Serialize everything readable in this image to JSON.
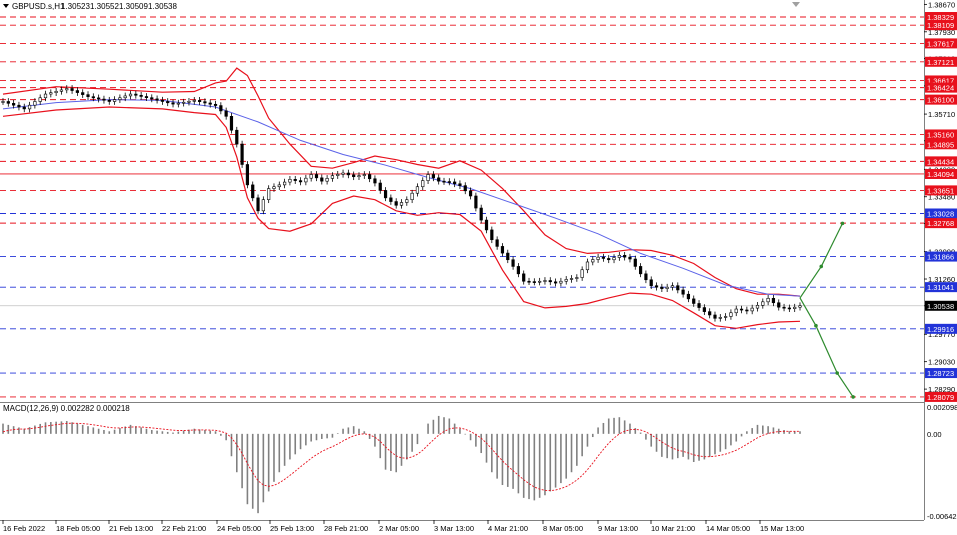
{
  "colors": {
    "background": "#ffffff",
    "plot_background": "#ffffff",
    "candle": "#000000",
    "bollinger": "#e8101c",
    "moving_average": "#5b62e8",
    "red_level": "#e8101c",
    "blue_level": "#2233d8",
    "arrow": "#2e8b2e",
    "macd_hist": "#808080",
    "macd_signal": "#e8101c",
    "current_price_line": "#c0c0c0"
  },
  "chart_data": {
    "type": "candlestick",
    "title": "GBPUSD.s,H1",
    "ohlc_readout": [
      "1.30523",
      "1.30552",
      "1.30509",
      "1.30538"
    ],
    "ylim": [
      1.2805,
      1.3868
    ],
    "price_ticks": [
      "1.38670",
      "1.37930",
      "1.37210",
      "1.36470",
      "1.35710",
      "1.34990",
      "1.34220",
      "1.33480",
      "1.32760",
      "1.32000",
      "1.31260",
      "1.30538",
      "1.29770",
      "1.29030",
      "1.28290"
    ],
    "time_labels": [
      "16 Feb 2022",
      "18 Feb 05:00",
      "21 Feb 13:00",
      "22 Feb 21:00",
      "24 Feb 05:00",
      "25 Feb 13:00",
      "28 Feb 21:00",
      "2 Mar 05:00",
      "3 Mar 13:00",
      "4 Mar 21:00",
      "8 Mar 05:00",
      "9 Mar 13:00",
      "10 Mar 21:00",
      "14 Mar 05:00",
      "15 Mar 13:00"
    ],
    "current_price": "1.30538",
    "price_path": [
      [
        0,
        1.3605
      ],
      [
        4,
        1.3585
      ],
      [
        8,
        1.3625
      ],
      [
        12,
        1.364
      ],
      [
        16,
        1.3618
      ],
      [
        20,
        1.3605
      ],
      [
        24,
        1.3625
      ],
      [
        28,
        1.3612
      ],
      [
        32,
        1.3598
      ],
      [
        36,
        1.3608
      ],
      [
        40,
        1.3594
      ],
      [
        42,
        1.3565
      ],
      [
        44,
        1.349
      ],
      [
        46,
        1.338
      ],
      [
        48,
        1.331
      ],
      [
        50,
        1.337
      ],
      [
        52,
        1.338
      ],
      [
        54,
        1.3395
      ],
      [
        56,
        1.3388
      ],
      [
        58,
        1.3408
      ],
      [
        60,
        1.339
      ],
      [
        62,
        1.3405
      ],
      [
        64,
        1.3412
      ],
      [
        66,
        1.3402
      ],
      [
        68,
        1.3408
      ],
      [
        70,
        1.3385
      ],
      [
        72,
        1.3345
      ],
      [
        74,
        1.3325
      ],
      [
        76,
        1.334
      ],
      [
        78,
        1.3375
      ],
      [
        80,
        1.3408
      ],
      [
        82,
        1.339
      ],
      [
        84,
        1.3388
      ],
      [
        86,
        1.3378
      ],
      [
        88,
        1.335
      ],
      [
        90,
        1.3285
      ],
      [
        92,
        1.3232
      ],
      [
        94,
        1.3196
      ],
      [
        96,
        1.316
      ],
      [
        98,
        1.312
      ],
      [
        100,
        1.3118
      ],
      [
        102,
        1.3122
      ],
      [
        104,
        1.3115
      ],
      [
        106,
        1.3125
      ],
      [
        108,
        1.313
      ],
      [
        110,
        1.3172
      ],
      [
        112,
        1.3185
      ],
      [
        114,
        1.3178
      ],
      [
        116,
        1.319
      ],
      [
        118,
        1.318
      ],
      [
        120,
        1.314
      ],
      [
        122,
        1.3108
      ],
      [
        124,
        1.31
      ],
      [
        126,
        1.3108
      ],
      [
        128,
        1.3085
      ],
      [
        130,
        1.306
      ],
      [
        132,
        1.3038
      ],
      [
        134,
        1.302
      ],
      [
        136,
        1.3025
      ],
      [
        138,
        1.3045
      ],
      [
        140,
        1.304
      ],
      [
        142,
        1.3055
      ],
      [
        144,
        1.3074
      ],
      [
        146,
        1.305
      ],
      [
        148,
        1.3046
      ],
      [
        150,
        1.3054
      ]
    ],
    "bands_upper": [
      [
        0,
        1.3625
      ],
      [
        10,
        1.3645
      ],
      [
        20,
        1.3638
      ],
      [
        30,
        1.363
      ],
      [
        36,
        1.3632
      ],
      [
        40,
        1.3655
      ],
      [
        42,
        1.366
      ],
      [
        44,
        1.3695
      ],
      [
        46,
        1.3675
      ],
      [
        48,
        1.362
      ],
      [
        50,
        1.356
      ],
      [
        54,
        1.349
      ],
      [
        58,
        1.343
      ],
      [
        62,
        1.3425
      ],
      [
        66,
        1.344
      ],
      [
        70,
        1.3458
      ],
      [
        74,
        1.3448
      ],
      [
        78,
        1.3435
      ],
      [
        82,
        1.3425
      ],
      [
        86,
        1.3445
      ],
      [
        90,
        1.342
      ],
      [
        94,
        1.337
      ],
      [
        98,
        1.331
      ],
      [
        102,
        1.3245
      ],
      [
        106,
        1.3208
      ],
      [
        110,
        1.3195
      ],
      [
        114,
        1.3198
      ],
      [
        118,
        1.3205
      ],
      [
        122,
        1.3203
      ],
      [
        126,
        1.319
      ],
      [
        130,
        1.3168
      ],
      [
        134,
        1.313
      ],
      [
        138,
        1.31
      ],
      [
        142,
        1.3085
      ],
      [
        146,
        1.3085
      ],
      [
        150,
        1.308
      ]
    ],
    "bands_lower": [
      [
        0,
        1.3565
      ],
      [
        10,
        1.3582
      ],
      [
        20,
        1.359
      ],
      [
        30,
        1.3585
      ],
      [
        36,
        1.3575
      ],
      [
        40,
        1.357
      ],
      [
        42,
        1.3535
      ],
      [
        44,
        1.3455
      ],
      [
        46,
        1.3345
      ],
      [
        48,
        1.329
      ],
      [
        50,
        1.3262
      ],
      [
        54,
        1.3255
      ],
      [
        58,
        1.3275
      ],
      [
        62,
        1.333
      ],
      [
        66,
        1.335
      ],
      [
        70,
        1.334
      ],
      [
        74,
        1.331
      ],
      [
        78,
        1.3298
      ],
      [
        82,
        1.3305
      ],
      [
        86,
        1.33
      ],
      [
        90,
        1.3255
      ],
      [
        94,
        1.315
      ],
      [
        98,
        1.3065
      ],
      [
        102,
        1.3048
      ],
      [
        106,
        1.3052
      ],
      [
        110,
        1.306
      ],
      [
        114,
        1.3075
      ],
      [
        118,
        1.3088
      ],
      [
        122,
        1.3085
      ],
      [
        126,
        1.3068
      ],
      [
        130,
        1.3035
      ],
      [
        134,
        1.3
      ],
      [
        138,
        1.2993
      ],
      [
        142,
        1.3003
      ],
      [
        146,
        1.301
      ],
      [
        150,
        1.3012
      ]
    ],
    "moving_average": [
      [
        0,
        1.3585
      ],
      [
        10,
        1.3602
      ],
      [
        20,
        1.361
      ],
      [
        30,
        1.3608
      ],
      [
        40,
        1.359
      ],
      [
        48,
        1.355
      ],
      [
        56,
        1.35
      ],
      [
        64,
        1.3462
      ],
      [
        72,
        1.3433
      ],
      [
        80,
        1.34
      ],
      [
        88,
        1.337
      ],
      [
        96,
        1.333
      ],
      [
        104,
        1.329
      ],
      [
        112,
        1.3248
      ],
      [
        120,
        1.3195
      ],
      [
        128,
        1.3155
      ],
      [
        136,
        1.311
      ],
      [
        144,
        1.3085
      ],
      [
        150,
        1.308
      ]
    ],
    "levels": [
      {
        "price": 1.38329,
        "label": "1.38329",
        "color": "red"
      },
      {
        "price": 1.38109,
        "label": "1.38109",
        "color": "red"
      },
      {
        "price": 1.37617,
        "label": "1.37617",
        "color": "red"
      },
      {
        "price": 1.37121,
        "label": "1.37121",
        "color": "red"
      },
      {
        "price": 1.36617,
        "label": "1.36617",
        "color": "red"
      },
      {
        "price": 1.36424,
        "label": "1.36424",
        "color": "red"
      },
      {
        "price": 1.361,
        "label": "1.36100",
        "color": "red"
      },
      {
        "price": 1.3516,
        "label": "1.35160",
        "color": "red"
      },
      {
        "price": 1.34895,
        "label": "1.34895",
        "color": "red"
      },
      {
        "price": 1.34434,
        "label": "1.34434",
        "color": "red"
      },
      {
        "price": 1.34094,
        "label": "1.34094",
        "color": "red",
        "solid": true
      },
      {
        "price": 1.33651,
        "label": "1.33651",
        "color": "red"
      },
      {
        "price": 1.33028,
        "label": "1.33028",
        "color": "blue"
      },
      {
        "price": 1.32768,
        "label": "1.32768",
        "color": "red"
      },
      {
        "price": 1.31866,
        "label": "1.31866",
        "color": "blue"
      },
      {
        "price": 1.31041,
        "label": "1.31041",
        "color": "blue"
      },
      {
        "price": 1.29916,
        "label": "1.29916",
        "color": "blue"
      },
      {
        "price": 1.28723,
        "label": "1.28723",
        "color": "blue"
      },
      {
        "price": 1.28079,
        "label": "1.28079",
        "color": "red"
      }
    ],
    "forecast_arrows": [
      {
        "direction": "up",
        "path": [
          [
            150,
            1.3075
          ],
          [
            154,
            1.316
          ],
          [
            158,
            1.3276
          ]
        ]
      },
      {
        "direction": "down",
        "path": [
          [
            150,
            1.3075
          ],
          [
            153,
            1.3
          ],
          [
            157,
            1.28723
          ],
          [
            160,
            1.28079
          ]
        ]
      }
    ],
    "macd": {
      "title": "MACD(12,26,9) 0.002282 0.000218",
      "ylim": [
        -0.006421,
        0.002098
      ],
      "ticks": [
        "0.002098",
        "0.00",
        "-0.006421"
      ],
      "histogram": [
        [
          0,
          0.0008
        ],
        [
          4,
          0.0004
        ],
        [
          8,
          0.0009
        ],
        [
          12,
          0.001
        ],
        [
          16,
          0.0006
        ],
        [
          20,
          0.0002
        ],
        [
          24,
          0.0007
        ],
        [
          28,
          0.0003
        ],
        [
          32,
          0.0001
        ],
        [
          36,
          0.0004
        ],
        [
          40,
          0.0002
        ],
        [
          42,
          -0.0005
        ],
        [
          44,
          -0.003
        ],
        [
          46,
          -0.0055
        ],
        [
          48,
          -0.0062
        ],
        [
          50,
          -0.0045
        ],
        [
          52,
          -0.003
        ],
        [
          54,
          -0.002
        ],
        [
          56,
          -0.0012
        ],
        [
          58,
          -0.0006
        ],
        [
          60,
          -0.0004
        ],
        [
          62,
          -0.0003
        ],
        [
          64,
          0.0004
        ],
        [
          66,
          0.0006
        ],
        [
          68,
          0.0002
        ],
        [
          70,
          -0.001
        ],
        [
          72,
          -0.0028
        ],
        [
          74,
          -0.003
        ],
        [
          76,
          -0.002
        ],
        [
          78,
          -0.0008
        ],
        [
          80,
          0.0008
        ],
        [
          82,
          0.0014
        ],
        [
          84,
          0.0012
        ],
        [
          86,
          0.0004
        ],
        [
          88,
          -0.0005
        ],
        [
          90,
          -0.0015
        ],
        [
          92,
          -0.003
        ],
        [
          94,
          -0.004
        ],
        [
          96,
          -0.0043
        ],
        [
          98,
          -0.005
        ],
        [
          100,
          -0.0052
        ],
        [
          102,
          -0.0048
        ],
        [
          104,
          -0.0042
        ],
        [
          106,
          -0.0035
        ],
        [
          108,
          -0.0025
        ],
        [
          110,
          -0.001
        ],
        [
          112,
          0.0005
        ],
        [
          114,
          0.0012
        ],
        [
          116,
          0.0013
        ],
        [
          118,
          0.0008
        ],
        [
          120,
          0.0001
        ],
        [
          122,
          -0.001
        ],
        [
          124,
          -0.0018
        ],
        [
          126,
          -0.002
        ],
        [
          128,
          -0.0018
        ],
        [
          130,
          -0.0022
        ],
        [
          132,
          -0.002
        ],
        [
          134,
          -0.0016
        ],
        [
          136,
          -0.0012
        ],
        [
          138,
          -0.0006
        ],
        [
          140,
          0.0002
        ],
        [
          142,
          0.0007
        ],
        [
          144,
          0.0006
        ],
        [
          146,
          0.0004
        ],
        [
          148,
          0.0002
        ],
        [
          150,
          0.0002
        ]
      ]
    }
  }
}
